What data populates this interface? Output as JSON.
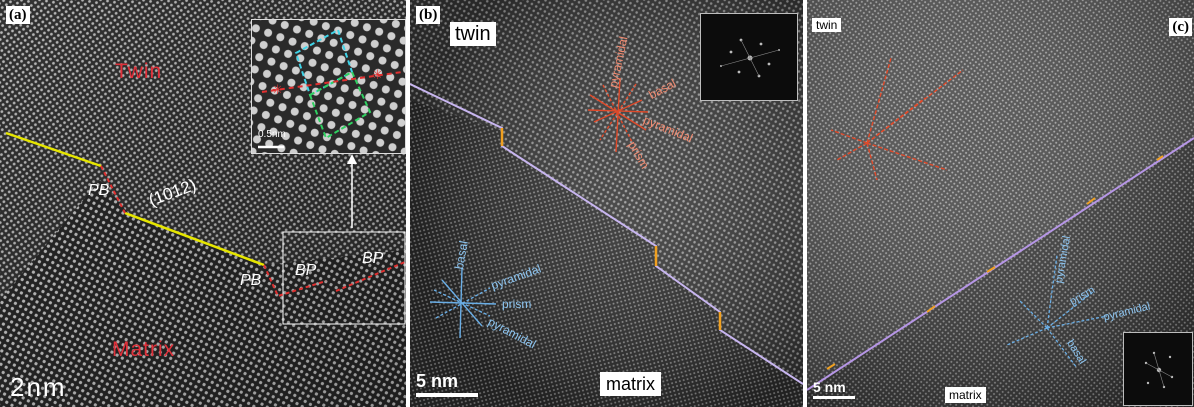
{
  "panels": {
    "a": {
      "tag": "(a)",
      "twin_label": "Twin",
      "matrix_label": "Matrix",
      "plane_label": "(1012)",
      "pb_label": "PB",
      "bp_label": "BP",
      "inset_scale": "0.5nm",
      "scale": "2nm"
    },
    "b": {
      "tag": "(b)",
      "twin_label": "twin",
      "matrix_label": "matrix",
      "scale": "5 nm",
      "twin_axes": [
        "pyramidal",
        "basal",
        "pyramidal",
        "prism"
      ],
      "matrix_axes": [
        "basal",
        "pyramidal",
        "prism",
        "pyramidal"
      ]
    },
    "c": {
      "tag": "(c)",
      "twin_label": "twin",
      "matrix_label": "matrix",
      "scale": "5 nm",
      "matrix_axes": [
        "pyramidal",
        "prism",
        "pyramidal",
        "basal"
      ]
    }
  },
  "colors": {
    "twin_star": "#e04a2a",
    "matrix_star": "#6aaee6",
    "boundary_lilac": "#c8b6f0",
    "step_orange": "#f0a020",
    "trace_yellow": "#e6e600",
    "trace_red": "#e03030",
    "label_red": "#e0303a",
    "inset_cyan": "#3fd4e8",
    "inset_green": "#2fd060"
  }
}
